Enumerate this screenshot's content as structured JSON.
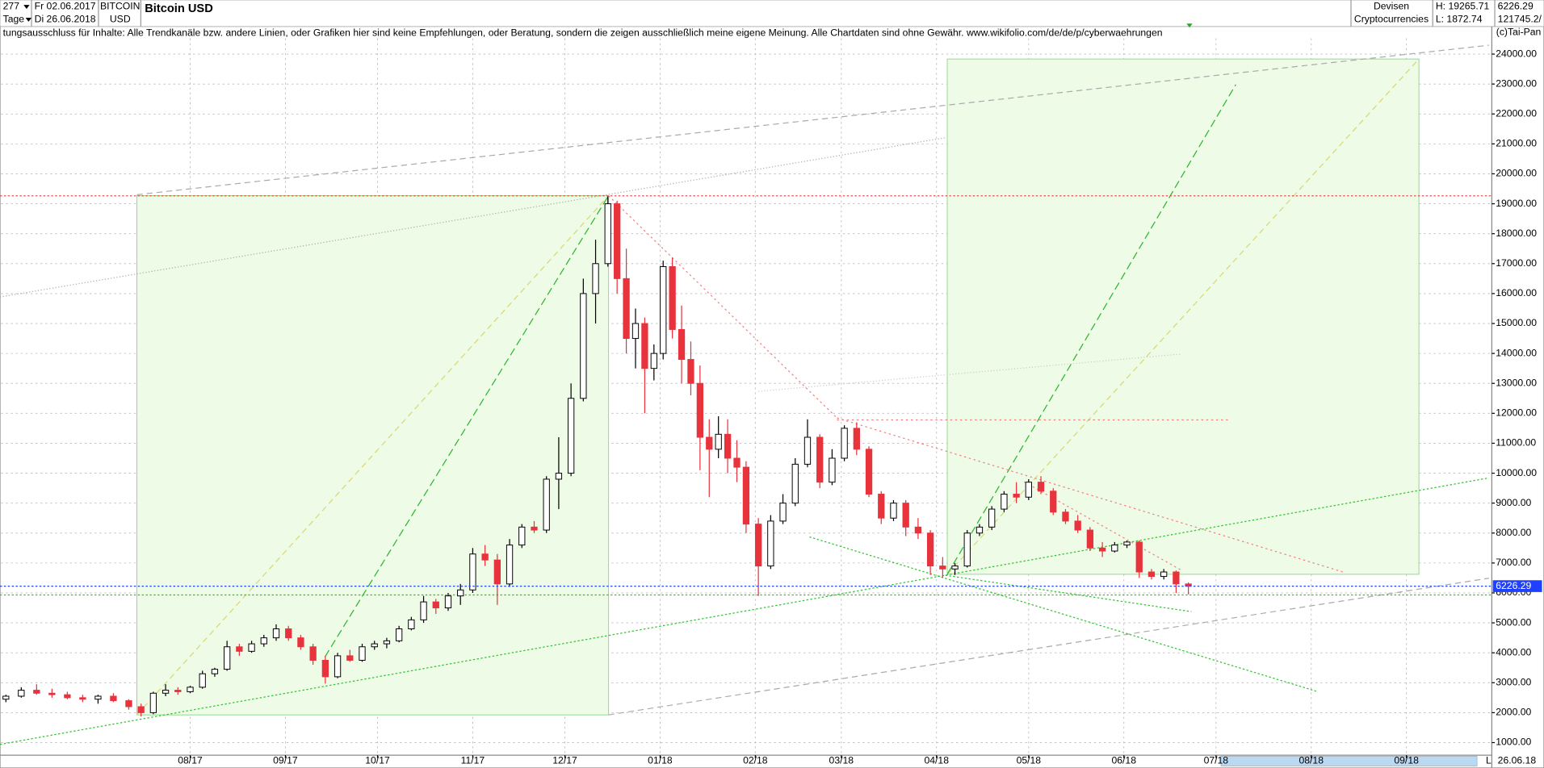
{
  "header": {
    "count": "277",
    "start": "Fr 02.06.2017",
    "period": "Tage",
    "end": "Di 26.06.2018",
    "symbol": "BITCOIN",
    "currency": "USD",
    "title": "Bitcoin USD",
    "market": "Devisen",
    "group": "Cryptocurrencies",
    "high": "H: 19265.71",
    "low": "L: 1872.74",
    "volume": "121745.2/",
    "disclaimer": "tungsausschluss für Inhalte: Alle Trendkanäle bzw. andere Linien, oder Grafiken hier sind keine Empfehlungen, oder Beratung, sondern die zeigen ausschließlich meine eigene Meinung. Alle Chartdaten sind ohne Gewähr.  www.wikifolio.com/de/de/p/cyberwaehrungen",
    "copyright": "(c)Tai-Pan",
    "date": "26.06.18",
    "scale": "L"
  },
  "chart_data": {
    "type": "candlestick",
    "up_color": "#ffffff",
    "down_color": "#e8323c",
    "grid": true,
    "high_line": 19265.71,
    "x": [
      0,
      5,
      10,
      15,
      20,
      25,
      30,
      35,
      40,
      44,
      48,
      52,
      56,
      60,
      64,
      68,
      72,
      76,
      80,
      84,
      88,
      92,
      96,
      100,
      104,
      108,
      112,
      116,
      120,
      124,
      128,
      132,
      136,
      140,
      144,
      148,
      152,
      156,
      160,
      164,
      168,
      172,
      176,
      180,
      184,
      188,
      192,
      196,
      199,
      202,
      205,
      208,
      211,
      214,
      217,
      220,
      223,
      226,
      229,
      232,
      235,
      238,
      241,
      245,
      249,
      253,
      257,
      261,
      265,
      269,
      273,
      277,
      281,
      285,
      289,
      293,
      297,
      301,
      305,
      309,
      313,
      317,
      321,
      325,
      329,
      333,
      337,
      341,
      345,
      349,
      353,
      357,
      361,
      365,
      369,
      373,
      377,
      381,
      385
    ],
    "open": [
      2450,
      2550,
      2750,
      2650,
      2600,
      2500,
      2450,
      2550,
      2400,
      2200,
      2000,
      2650,
      2750,
      2700,
      2850,
      3300,
      3450,
      4200,
      4050,
      4300,
      4500,
      4800,
      4500,
      4200,
      3750,
      3200,
      3900,
      3750,
      4200,
      4300,
      4400,
      4800,
      5100,
      5700,
      5500,
      5900,
      6100,
      7300,
      7100,
      6300,
      7600,
      8200,
      8100,
      9800,
      10000,
      12500,
      16000,
      17000,
      19000,
      16500,
      14500,
      15000,
      13500,
      14000,
      16900,
      14800,
      13800,
      13000,
      11200,
      10800,
      11300,
      10500,
      10200,
      8300,
      6900,
      8400,
      9000,
      10300,
      11200,
      9700,
      10500,
      11500,
      10800,
      9300,
      8500,
      9000,
      8200,
      8000,
      6900,
      6800,
      6900,
      8000,
      8200,
      8800,
      9300,
      9200,
      9700,
      9400,
      8700,
      8400,
      8100,
      7500,
      7400,
      7600,
      7700,
      6700,
      6550,
      6700,
      6300
    ],
    "high": [
      2600,
      2850,
      2950,
      2800,
      2700,
      2600,
      2600,
      2650,
      2450,
      2300,
      2700,
      2950,
      2850,
      2900,
      3400,
      3500,
      4400,
      4300,
      4400,
      4600,
      4950,
      4900,
      4600,
      4300,
      3900,
      4000,
      4100,
      4300,
      4400,
      4500,
      4900,
      5200,
      5900,
      5800,
      6000,
      6300,
      7500,
      7600,
      7300,
      7800,
      8300,
      8400,
      9900,
      11200,
      13000,
      16500,
      17800,
      19250,
      19100,
      17500,
      15500,
      15200,
      14300,
      17100,
      17200,
      15600,
      14400,
      13600,
      11800,
      11900,
      11800,
      11100,
      10400,
      8500,
      8600,
      9300,
      10500,
      11800,
      11300,
      10800,
      11600,
      11700,
      10900,
      9400,
      9100,
      9100,
      8500,
      8100,
      7200,
      7000,
      8100,
      8300,
      8900,
      9400,
      9700,
      9800,
      9900,
      9500,
      8800,
      8600,
      8200,
      7700,
      7700,
      7750,
      7750,
      6800,
      6800,
      6750,
      6350
    ],
    "low": [
      2350,
      2500,
      2600,
      2500,
      2450,
      2350,
      2300,
      2350,
      2100,
      1870,
      1950,
      2550,
      2600,
      2650,
      2800,
      3200,
      3400,
      3900,
      4000,
      4200,
      4400,
      4400,
      4100,
      3600,
      2970,
      3150,
      3700,
      3700,
      4100,
      4150,
      4350,
      4750,
      5000,
      5300,
      5400,
      5600,
      6000,
      6900,
      5600,
      6200,
      7500,
      8000,
      8000,
      8800,
      9900,
      12400,
      15000,
      16900,
      16000,
      14000,
      13500,
      12000,
      13100,
      13800,
      14500,
      13000,
      12600,
      10100,
      9200,
      10500,
      10000,
      9700,
      8000,
      5900,
      6800,
      8300,
      8900,
      10200,
      9500,
      9600,
      10400,
      10600,
      9200,
      8300,
      8400,
      7900,
      7800,
      6600,
      6500,
      6600,
      6850,
      7900,
      8100,
      8700,
      9000,
      9100,
      9300,
      8600,
      8300,
      8000,
      7400,
      7200,
      7350,
      7500,
      6500,
      6450,
      6450,
      6000,
      5950
    ],
    "close": [
      2550,
      2750,
      2650,
      2600,
      2500,
      2450,
      2550,
      2400,
      2200,
      2000,
      2650,
      2750,
      2700,
      2850,
      3300,
      3450,
      4200,
      4050,
      4300,
      4500,
      4800,
      4500,
      4200,
      3750,
      3200,
      3900,
      3750,
      4200,
      4300,
      4400,
      4800,
      5100,
      5700,
      5500,
      5900,
      6100,
      7300,
      7100,
      6300,
      7600,
      8200,
      8100,
      9800,
      10000,
      12500,
      16000,
      17000,
      19000,
      16500,
      14500,
      15000,
      13500,
      14000,
      16900,
      14800,
      13800,
      13000,
      11200,
      10800,
      11300,
      10500,
      10200,
      8300,
      6900,
      8400,
      9000,
      10300,
      11200,
      9700,
      10500,
      11500,
      10800,
      9300,
      8500,
      9000,
      8200,
      8000,
      6900,
      6800,
      6900,
      8000,
      8200,
      8800,
      9300,
      9200,
      9700,
      9400,
      8700,
      8400,
      8100,
      7500,
      7400,
      7600,
      7700,
      6700,
      6550,
      6700,
      6300,
      6226.29
    ],
    "xlim": [
      -1.6,
      483.8
    ],
    "ylim": [
      250,
      24920
    ],
    "xticks": [
      {
        "value": 60,
        "label": "08/17"
      },
      {
        "value": 91,
        "label": "09/17"
      },
      {
        "value": 121,
        "label": "10/17"
      },
      {
        "value": 152,
        "label": "11/17"
      },
      {
        "value": 182,
        "label": "12/17"
      },
      {
        "value": 213,
        "label": "01/18"
      },
      {
        "value": 244,
        "label": "02/18"
      },
      {
        "value": 272,
        "label": "03/18"
      },
      {
        "value": 303,
        "label": "04/18"
      },
      {
        "value": 333,
        "label": "05/18"
      },
      {
        "value": 364,
        "label": "06/18"
      },
      {
        "value": 394,
        "label": "07/18"
      },
      {
        "value": 425,
        "label": "08/18"
      },
      {
        "value": 456,
        "label": "09/18"
      }
    ],
    "yticks": [
      {
        "value": 1000,
        "label": "1000.00"
      },
      {
        "value": 2000,
        "label": "2000.00"
      },
      {
        "value": 3000,
        "label": "3000.00"
      },
      {
        "value": 4000,
        "label": "4000.00"
      },
      {
        "value": 5000,
        "label": "5000.00"
      },
      {
        "value": 6000,
        "label": "6000.00"
      },
      {
        "value": 7000,
        "label": "7000.00"
      },
      {
        "value": 8000,
        "label": "8000.00"
      },
      {
        "value": 9000,
        "label": "9000.00"
      },
      {
        "value": 10000,
        "label": "10000.00"
      },
      {
        "value": 11000,
        "label": "11000.00"
      },
      {
        "value": 12000,
        "label": "12000.00"
      },
      {
        "value": 13000,
        "label": "13000.00"
      },
      {
        "value": 14000,
        "label": "14000.00"
      },
      {
        "value": 15000,
        "label": "15000.00"
      },
      {
        "value": 16000,
        "label": "16000.00"
      },
      {
        "value": 17000,
        "label": "17000.00"
      },
      {
        "value": 18000,
        "label": "18000.00"
      },
      {
        "value": 19000,
        "label": "19000.00"
      },
      {
        "value": 20000,
        "label": "20000.00"
      },
      {
        "value": 21000,
        "label": "21000.00"
      },
      {
        "value": 22000,
        "label": "22000.00"
      },
      {
        "value": 23000,
        "label": "23000.00"
      },
      {
        "value": 24000,
        "label": "24000.00"
      }
    ]
  }
}
